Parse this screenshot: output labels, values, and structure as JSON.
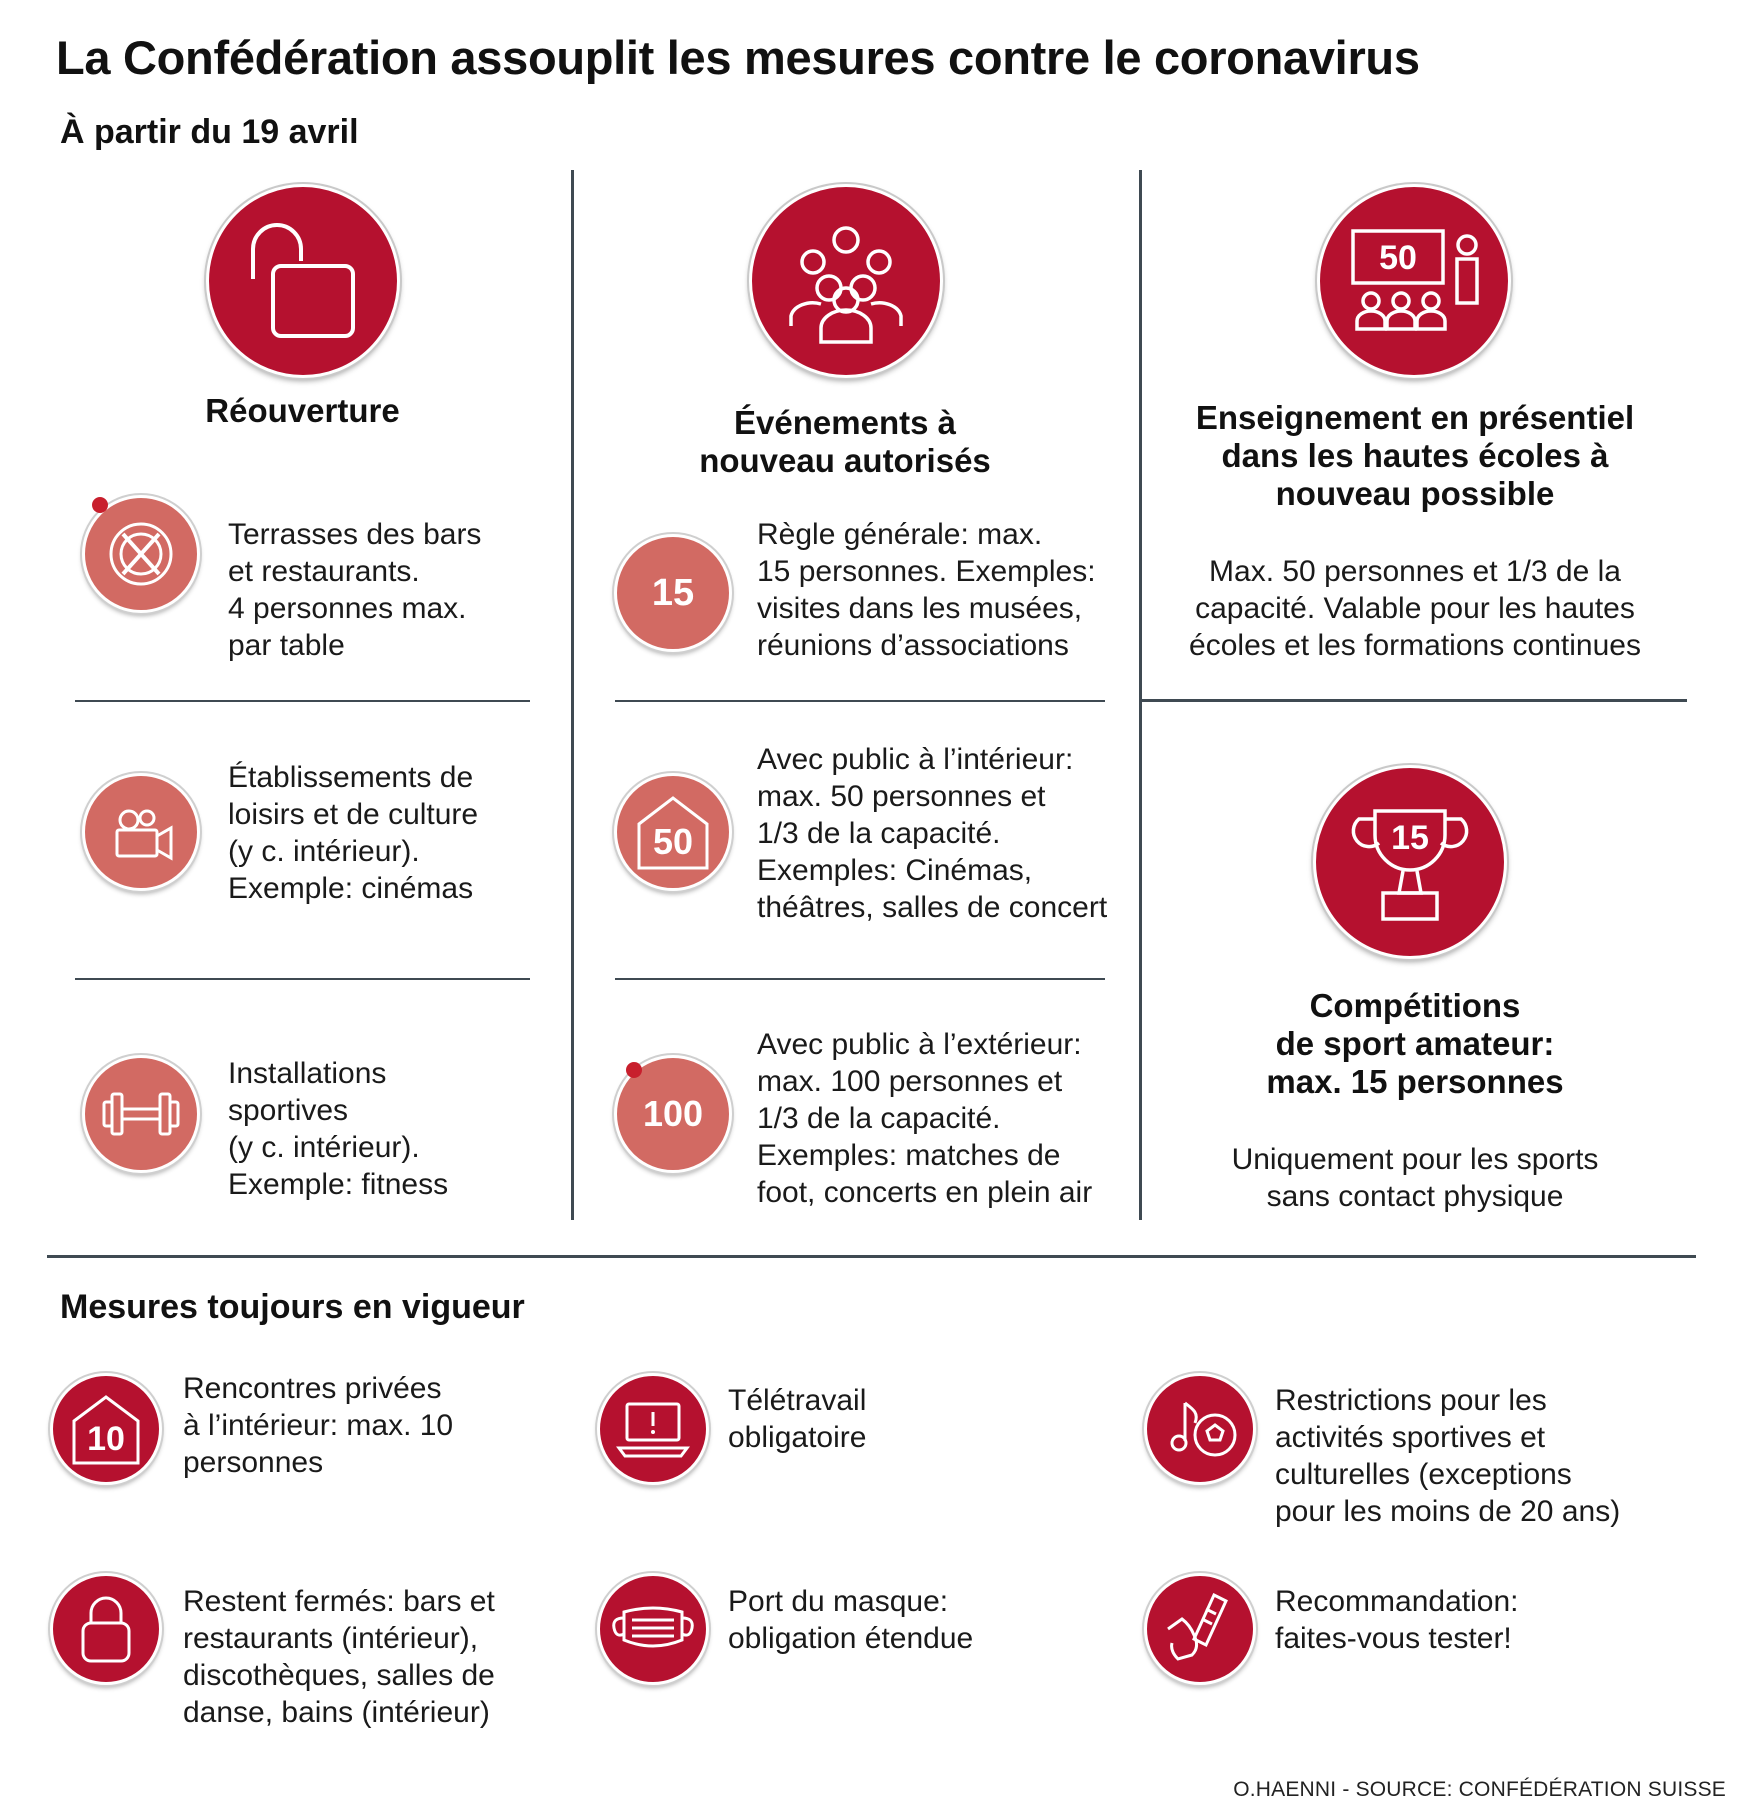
{
  "title": "La Confédération assouplit les mesures contre le coronavirus",
  "subtitle": "À partir du 19 avril",
  "columns": {
    "reouverture": {
      "heading": "Réouverture",
      "items": [
        {
          "text": "Terrasses des bars\net restaurants.\n4 personnes max.\npar table",
          "icon": "plate-cutlery-icon"
        },
        {
          "text": "Établissements de\nloisirs et de culture\n(y c. intérieur).\nExemple: cinémas",
          "icon": "movie-camera-icon"
        },
        {
          "text": "Installations\nsportives\n(y c. intérieur).\nExemple: fitness",
          "icon": "dumbbell-icon"
        }
      ]
    },
    "evenements": {
      "heading": "Événements à\nnouveau autorisés",
      "items": [
        {
          "badge": "15",
          "text": "Règle générale: max.\n15 personnes. Exemples:\nvisites dans les musées,\nréunions d’associations"
        },
        {
          "badge": "50",
          "text": "Avec public à l’intérieur:\nmax. 50 personnes et\n1/3 de la capacité.\nExemples: Cinémas,\nthéâtres, salles de concert"
        },
        {
          "badge": "100",
          "text": "Avec public à l’extérieur:\nmax. 100 personnes et\n1/3 de la capacité.\nExemples: matches de\nfoot, concerts en plein air"
        }
      ]
    },
    "enseignement": {
      "heading": "Enseignement en présentiel\ndans les hautes écoles à\nnouveau possible",
      "badge": "50",
      "text": "Max. 50 personnes et 1/3 de la\ncapacité. Valable pour les hautes\nécoles et les formations continues"
    },
    "competitions": {
      "heading": "Compétitions\nde sport amateur:\nmax. 15 personnes",
      "badge": "15",
      "text": "Uniquement pour les sports\nsans contact physique"
    }
  },
  "mesures": {
    "heading": "Mesures toujours en vigueur",
    "items": [
      {
        "badge": "10",
        "text": "Rencontres privées\nà l’intérieur: max. 10\npersonnes"
      },
      {
        "text": "Télétravail\nobligatoire"
      },
      {
        "text": "Restrictions pour les\nactivités sportives et\nculturelles (exceptions\npour les moins de 20 ans)"
      },
      {
        "text": "Restent fermés: bars et\nrestaurants (intérieur),\ndiscothèques, salles de\ndanse, bains (intérieur)"
      },
      {
        "text": "Port du masque:\nobligation étendue"
      },
      {
        "text": "Recommandation:\nfaites-vous tester!"
      }
    ]
  },
  "credit": "O.HAENNI - SOURCE: CONFÉDÉRATION SUISSE",
  "colors": {
    "accent": "#b5112f",
    "accent_light": "#d26a63",
    "line": "#3f4a52"
  }
}
